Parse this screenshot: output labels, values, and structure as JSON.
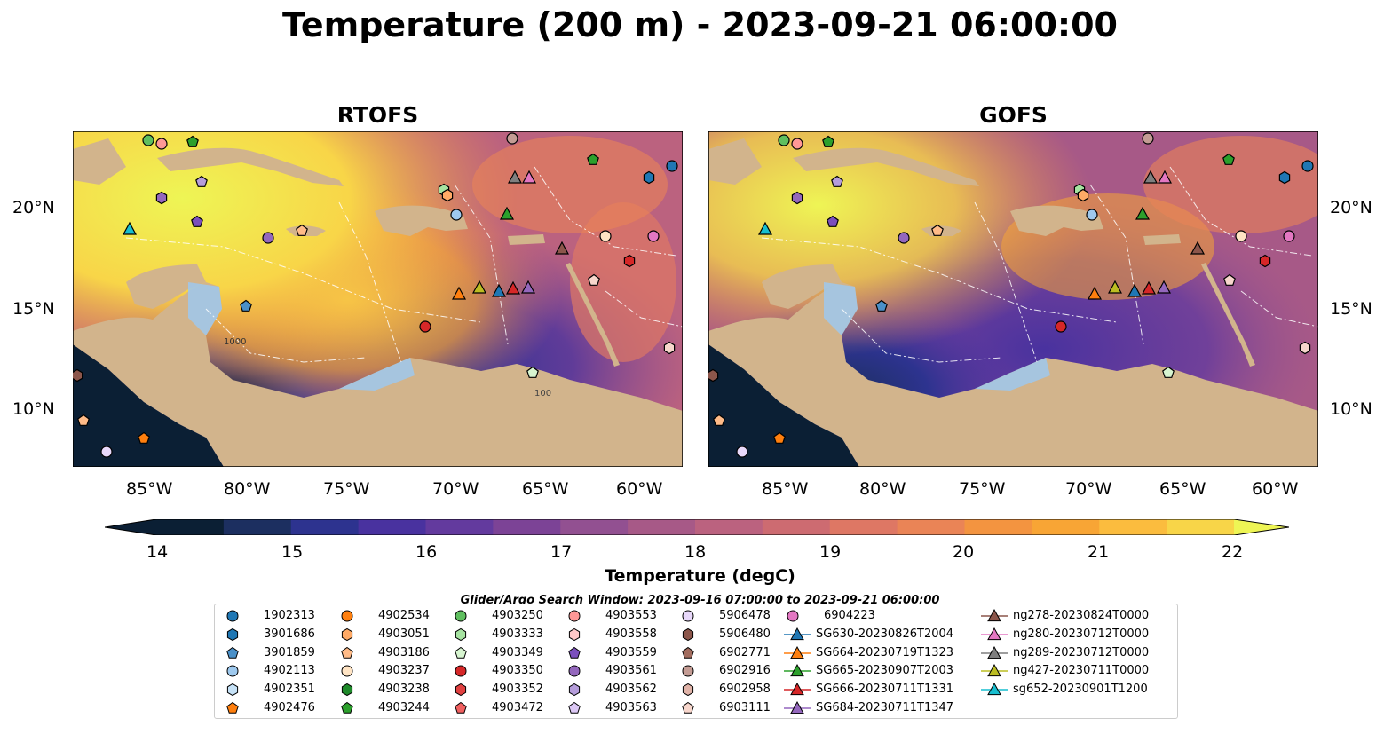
{
  "figure": {
    "title": "Temperature (200 m) - 2023-09-21 06:00:00",
    "panels": [
      {
        "title": "RTOFS"
      },
      {
        "title": "GOFS"
      }
    ],
    "lon_ticks": [
      "85°W",
      "80°W",
      "75°W",
      "70°W",
      "65°W",
      "60°W"
    ],
    "lat_ticks": [
      "20°N",
      "15°N",
      "10°N"
    ],
    "contour_labels": [
      "1000",
      "100"
    ],
    "colors": {
      "ocean_shelf": "#a1c6e8",
      "land": "#d2b48c",
      "cmap": [
        "#0b1f34",
        "#1c2f60",
        "#2d338f",
        "#49329f",
        "#633a9e",
        "#7c4396",
        "#925091",
        "#a75987",
        "#bb627f",
        "#cd6b71",
        "#de7764",
        "#ea8456",
        "#f39440",
        "#f8a535",
        "#fbbc3e",
        "#f8d548",
        "#eef555"
      ]
    }
  },
  "colorbar": {
    "label": "Temperature (degC)",
    "ticks": [
      "14",
      "15",
      "16",
      "17",
      "18",
      "19",
      "20",
      "21",
      "22"
    ],
    "min": 14,
    "max": 22
  },
  "search_window": "Glider/Argo Search Window: 2023-09-16 07:00:00 to 2023-09-21 06:00:00",
  "legend": {
    "columns": [
      [
        {
          "label": "1902313",
          "shape": "circle",
          "color": "#1f77b4"
        },
        {
          "label": "3901686",
          "shape": "hexagon",
          "color": "#1f77b4"
        },
        {
          "label": "3901859",
          "shape": "pentagon",
          "color": "#4a90c8"
        },
        {
          "label": "4902113",
          "shape": "circle",
          "color": "#9ec9ee"
        },
        {
          "label": "4902351",
          "shape": "hexagon",
          "color": "#c6e2f7"
        },
        {
          "label": "4902476",
          "shape": "pentagon",
          "color": "#ff7f0e"
        }
      ],
      [
        {
          "label": "4902534",
          "shape": "circle",
          "color": "#ff7f0e"
        },
        {
          "label": "4903051",
          "shape": "hexagon",
          "color": "#ffaa66"
        },
        {
          "label": "4903186",
          "shape": "pentagon",
          "color": "#ffbb88"
        },
        {
          "label": "4903237",
          "shape": "circle",
          "color": "#ffe4c4"
        },
        {
          "label": "4903238",
          "shape": "hexagon",
          "color": "#1e8a2a"
        },
        {
          "label": "4903244",
          "shape": "pentagon",
          "color": "#2ca02c"
        }
      ],
      [
        {
          "label": "4903250",
          "shape": "circle",
          "color": "#5fbf5f"
        },
        {
          "label": "4903333",
          "shape": "hexagon",
          "color": "#a6e3a1"
        },
        {
          "label": "4903349",
          "shape": "pentagon",
          "color": "#d7f5d0"
        },
        {
          "label": "4903350",
          "shape": "circle",
          "color": "#d62728"
        },
        {
          "label": "4903352",
          "shape": "hexagon",
          "color": "#e04040"
        },
        {
          "label": "4903472",
          "shape": "pentagon",
          "color": "#f06060"
        }
      ],
      [
        {
          "label": "4903553",
          "shape": "circle",
          "color": "#ff9896"
        },
        {
          "label": "4903558",
          "shape": "hexagon",
          "color": "#ffc8c8"
        },
        {
          "label": "4903559",
          "shape": "pentagon",
          "color": "#7b4fbd"
        },
        {
          "label": "4903561",
          "shape": "circle",
          "color": "#9467bd"
        },
        {
          "label": "4903562",
          "shape": "hexagon",
          "color": "#b59ddb"
        },
        {
          "label": "4903563",
          "shape": "pentagon",
          "color": "#dcc8f5"
        }
      ],
      [
        {
          "label": "5906478",
          "shape": "circle",
          "color": "#e8d8fa"
        },
        {
          "label": "5906480",
          "shape": "hexagon",
          "color": "#8c564b"
        },
        {
          "label": "6902771",
          "shape": "pentagon",
          "color": "#a26c5e"
        },
        {
          "label": "6902916",
          "shape": "circle",
          "color": "#c49c94"
        },
        {
          "label": "6902958",
          "shape": "hexagon",
          "color": "#e0b3a8"
        },
        {
          "label": "6903111",
          "shape": "pentagon",
          "color": "#f7d6cc"
        }
      ],
      [
        {
          "label": "6904223",
          "shape": "circle",
          "color": "#e377c2"
        },
        {
          "label": "SG630-20230826T2004",
          "shape": "triangle",
          "color": "#1f77b4"
        },
        {
          "label": "SG664-20230719T1323",
          "shape": "triangle",
          "color": "#ff7f0e"
        },
        {
          "label": "SG665-20230907T2003",
          "shape": "triangle",
          "color": "#2ca02c"
        },
        {
          "label": "SG666-20230711T1331",
          "shape": "triangle",
          "color": "#d62728"
        },
        {
          "label": "SG684-20230711T1347",
          "shape": "triangle",
          "color": "#9467bd"
        }
      ],
      [
        {
          "label": "ng278-20230824T0000",
          "shape": "triangle",
          "color": "#8c564b"
        },
        {
          "label": "ng280-20230712T0000",
          "shape": "triangle",
          "color": "#e377c2"
        },
        {
          "label": "ng289-20230712T0000",
          "shape": "triangle",
          "color": "#7f7f7f"
        },
        {
          "label": "ng427-20230711T0000",
          "shape": "triangle",
          "color": "#bcbd22"
        },
        {
          "label": "sg652-20230901T1200",
          "shape": "triangle",
          "color": "#17becf"
        }
      ]
    ]
  }
}
